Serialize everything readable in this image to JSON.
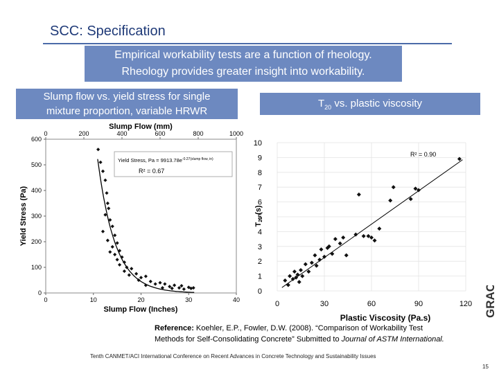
{
  "slide": {
    "title": "SCC: Specification",
    "intro_line1": "Empirical workability tests are a function of rheology.",
    "intro_line2": "Rheology provides greater insight into workability.",
    "left_header_line1": "Slump flow vs. yield stress for single",
    "left_header_line2": "mixture proportion, variable HRWR",
    "right_header_prefix": "T",
    "right_header_sub": "20",
    "right_header_suffix": " vs. plastic viscosity",
    "reference_bold": "Reference:",
    "reference_line1_rest": " Koehler, E.P., Fowler, D.W. (2008). “Comparison of Workability Test",
    "reference_line2_start": "Methods for Self-Consolidating Concrete” Submitted to ",
    "reference_journal": "Journal of ASTM International.",
    "footer": "Tenth CANMET/ACI International Conference on Recent Advances in Concrete Technology and Sustainability Issues",
    "page_number": "15",
    "logo_text": "GRACE",
    "colors": {
      "title": "#1f3a78",
      "box_fill": "#6d89c0",
      "rule": "#4a6aa8"
    }
  },
  "chart_data": [
    {
      "type": "scatter",
      "title": "",
      "xlabel": "Slump Flow (Inches)",
      "x2label": "Slump Flow (mm)",
      "ylabel": "Yield Stress (Pa)",
      "xlim": [
        0,
        40
      ],
      "x2lim": [
        0,
        1000
      ],
      "ylim": [
        0,
        600
      ],
      "x_ticks": [
        "0",
        "10",
        "20",
        "30",
        "40"
      ],
      "x2_ticks": [
        "0",
        "200",
        "400",
        "600",
        "800",
        "1000"
      ],
      "y_ticks": [
        "0",
        "100",
        "200",
        "300",
        "400",
        "500",
        "600"
      ],
      "equation": "Yield Stress, Pa = 9913.78e",
      "equation_exponent": "-0.27(slump flow, in)",
      "r_squared": "R² = 0.67",
      "fit": {
        "form": "exp",
        "a": 9913.78,
        "b": -0.27
      },
      "points": [
        [
          11.0,
          560
        ],
        [
          11.5,
          510
        ],
        [
          12.0,
          475
        ],
        [
          12.5,
          440
        ],
        [
          12.8,
          390
        ],
        [
          13.0,
          350
        ],
        [
          13.2,
          330
        ],
        [
          12.5,
          305
        ],
        [
          13.5,
          285
        ],
        [
          14.0,
          260
        ],
        [
          12.0,
          240
        ],
        [
          14.5,
          225
        ],
        [
          13.0,
          205
        ],
        [
          15.0,
          195
        ],
        [
          14.0,
          180
        ],
        [
          15.5,
          165
        ],
        [
          13.5,
          160
        ],
        [
          14.5,
          150
        ],
        [
          16.0,
          140
        ],
        [
          15.0,
          130
        ],
        [
          16.5,
          120
        ],
        [
          15.5,
          110
        ],
        [
          17.0,
          100
        ],
        [
          18.0,
          95
        ],
        [
          16.5,
          85
        ],
        [
          19.0,
          75
        ],
        [
          17.5,
          70
        ],
        [
          21.0,
          65
        ],
        [
          19.5,
          50
        ],
        [
          20.0,
          60
        ],
        [
          22.0,
          45
        ],
        [
          23.0,
          35
        ],
        [
          24.0,
          40
        ],
        [
          21.0,
          30
        ],
        [
          25.0,
          35
        ],
        [
          26.0,
          25
        ],
        [
          27.0,
          30
        ],
        [
          24.5,
          20
        ],
        [
          26.5,
          18
        ],
        [
          28.0,
          20
        ],
        [
          29.0,
          15
        ],
        [
          30.0,
          22
        ],
        [
          30.5,
          18
        ],
        [
          28.5,
          28
        ],
        [
          31.0,
          20
        ]
      ]
    },
    {
      "type": "scatter",
      "title": "",
      "xlabel": "Plastic Viscosity (Pa.s)",
      "ylabel_main": "T",
      "ylabel_sub": "20",
      "ylabel_unit": " (s)",
      "xlim": [
        0,
        120
      ],
      "ylim": [
        0,
        10
      ],
      "x_ticks": [
        "0",
        "30",
        "60",
        "90",
        "120"
      ],
      "y_ticks": [
        "0",
        "1",
        "2",
        "3",
        "4",
        "5",
        "6",
        "7",
        "8",
        "9",
        "10"
      ],
      "r_squared": "R² = 0.90",
      "fit": {
        "form": "linear",
        "slope": 0.075,
        "intercept": 0.0
      },
      "points": [
        [
          5,
          0.7
        ],
        [
          7,
          0.4
        ],
        [
          8,
          1.0
        ],
        [
          10,
          0.8
        ],
        [
          11,
          1.3
        ],
        [
          12,
          0.9
        ],
        [
          13,
          1.1
        ],
        [
          14,
          0.6
        ],
        [
          15,
          1.4
        ],
        [
          16,
          1.0
        ],
        [
          18,
          1.8
        ],
        [
          20,
          1.3
        ],
        [
          22,
          1.9
        ],
        [
          24,
          2.4
        ],
        [
          25,
          1.7
        ],
        [
          27,
          2.1
        ],
        [
          28,
          2.8
        ],
        [
          30,
          2.3
        ],
        [
          32,
          2.9
        ],
        [
          33,
          3.0
        ],
        [
          35,
          2.5
        ],
        [
          37,
          3.5
        ],
        [
          40,
          3.2
        ],
        [
          42,
          3.6
        ],
        [
          44,
          2.4
        ],
        [
          50,
          3.8
        ],
        [
          52,
          6.5
        ],
        [
          55,
          3.7
        ],
        [
          58,
          3.7
        ],
        [
          60,
          3.6
        ],
        [
          62,
          3.4
        ],
        [
          65,
          4.2
        ],
        [
          72,
          6.1
        ],
        [
          74,
          7.0
        ],
        [
          85,
          6.2
        ],
        [
          88,
          6.9
        ],
        [
          90,
          6.8
        ],
        [
          116,
          8.9
        ]
      ]
    }
  ]
}
